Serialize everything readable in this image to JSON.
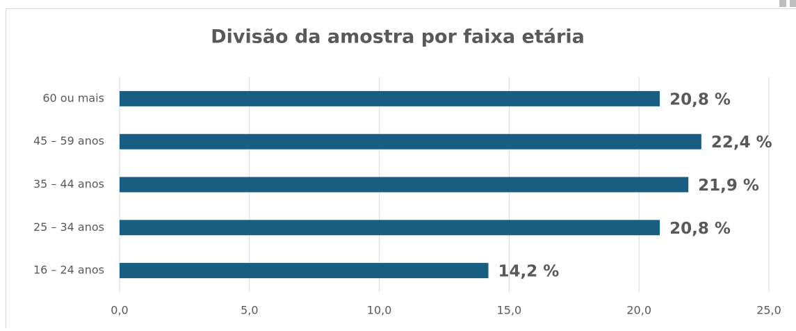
{
  "chart_data": {
    "type": "bar",
    "orientation": "horizontal",
    "title": "Divisão da amostra por faixa etária",
    "categories": [
      "60 ou mais",
      "45 – 59 anos",
      "35 – 44 anos",
      "25 – 34 anos",
      "16 – 24 anos"
    ],
    "values": [
      20.8,
      22.4,
      21.9,
      20.8,
      14.2
    ],
    "value_labels": [
      "20,8 %",
      "22,4 %",
      "21,9 %",
      "20,8 %",
      "14,2 %"
    ],
    "color": "#175e82",
    "xlim": [
      0,
      25
    ],
    "xticks": [
      {
        "value": 0,
        "label": "0,0"
      },
      {
        "value": 5,
        "label": "5,0"
      },
      {
        "value": 10,
        "label": "10,0"
      },
      {
        "value": 15,
        "label": "15,0"
      },
      {
        "value": 20,
        "label": "20,0"
      },
      {
        "value": 25,
        "label": "25,0"
      }
    ],
    "grid": true
  }
}
